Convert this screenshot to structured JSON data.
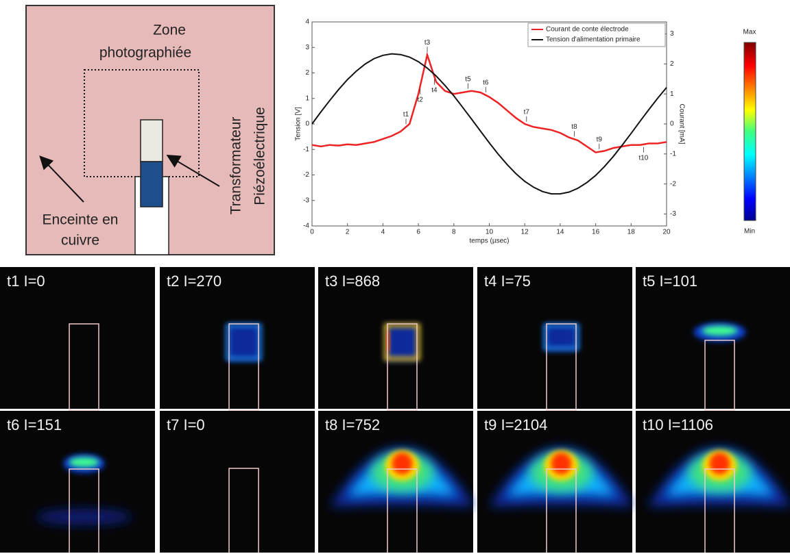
{
  "diagram": {
    "zone": [
      "Zone",
      "photographiée"
    ],
    "enclosure": [
      "Enceinte en",
      "cuivre"
    ],
    "transformer": [
      "Transformateur",
      "Piézoélectrique"
    ]
  },
  "chart_data": {
    "type": "line",
    "x_label": "temps (µsec)",
    "y_label": "Tension [V]",
    "y2_label": "Courant [mA]",
    "x": [
      0,
      0.5,
      1,
      1.5,
      2,
      2.5,
      3,
      3.5,
      4,
      4.5,
      5,
      5.5,
      6,
      6.5,
      7,
      7.5,
      8,
      8.5,
      9,
      9.5,
      10,
      10.5,
      11,
      11.5,
      12,
      12.5,
      13,
      13.5,
      14,
      14.5,
      15,
      15.5,
      16,
      16.5,
      17,
      17.5,
      18,
      18.5,
      19,
      19.5,
      20
    ],
    "series": [
      {
        "name": "Courant de conte électrode",
        "color": "#ee2222",
        "axis": "y2",
        "values": [
          -0.7,
          -0.75,
          -0.7,
          -0.72,
          -0.68,
          -0.7,
          -0.65,
          -0.6,
          -0.5,
          -0.4,
          -0.25,
          0.0,
          1.0,
          2.3,
          1.4,
          1.1,
          1.0,
          1.05,
          1.1,
          1.05,
          0.9,
          0.7,
          0.45,
          0.2,
          0.0,
          -0.1,
          -0.15,
          -0.2,
          -0.3,
          -0.45,
          -0.55,
          -0.75,
          -0.95,
          -0.9,
          -0.8,
          -0.75,
          -0.7,
          -0.7,
          -0.65,
          -0.65,
          -0.6
        ]
      },
      {
        "name": "Tension d'alimentation primaire",
        "color": "#111111",
        "values": [
          0,
          0.47,
          0.92,
          1.35,
          1.74,
          2.07,
          2.35,
          2.56,
          2.69,
          2.75,
          2.72,
          2.62,
          2.44,
          2.19,
          1.88,
          1.51,
          1.1,
          0.65,
          0.19,
          -0.28,
          -0.74,
          -1.18,
          -1.59,
          -1.95,
          -2.25,
          -2.48,
          -2.65,
          -2.74,
          -2.74,
          -2.67,
          -2.52,
          -2.3,
          -2.02,
          -1.67,
          -1.27,
          -0.83,
          -0.37,
          0.1,
          0.56,
          1.01,
          1.43
        ]
      }
    ],
    "xlim": [
      0,
      20
    ],
    "xticks": [
      0,
      2,
      4,
      6,
      8,
      10,
      12,
      14,
      16,
      18,
      20
    ],
    "ylim": [
      -4,
      4
    ],
    "yticks": [
      -4,
      -3,
      -2,
      -1,
      0,
      1,
      2,
      3,
      4
    ],
    "y2lim": [
      -3.4,
      3.4
    ],
    "y2ticks": [
      -3,
      -2,
      -1,
      0,
      1,
      2,
      3
    ],
    "legend": "upper right",
    "annotations": [
      {
        "label": "t1",
        "x": 5.3
      },
      {
        "label": "t2",
        "x": 6.1
      },
      {
        "label": "t3",
        "x": 6.5
      },
      {
        "label": "t4",
        "x": 6.9
      },
      {
        "label": "t5",
        "x": 8.8
      },
      {
        "label": "t6",
        "x": 9.8
      },
      {
        "label": "t7",
        "x": 12.1
      },
      {
        "label": "t8",
        "x": 14.8
      },
      {
        "label": "t9",
        "x": 16.2
      },
      {
        "label": "t10",
        "x": 18.7
      }
    ]
  },
  "colorbar": {
    "max": "Max",
    "min": "Min"
  },
  "panels": [
    "t1 I=0",
    "t2  I=270",
    "t3 I=868",
    "t4 I=75",
    "t5 I=101",
    "t6 I=151",
    "t7 I=0",
    "t8 I=752",
    "t9 I=2104",
    "t10 I=1106"
  ]
}
